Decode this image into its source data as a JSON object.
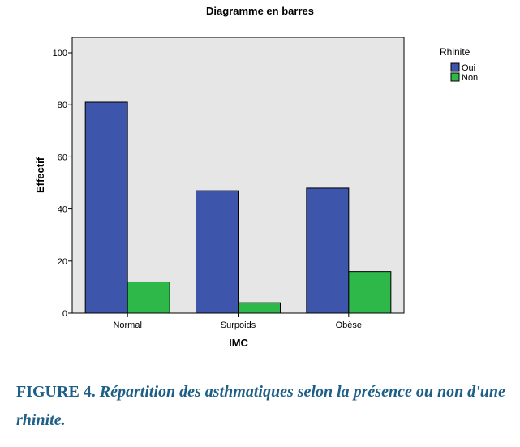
{
  "chart_data": {
    "type": "bar",
    "title": "Diagramme en barres",
    "xlabel": "IMC",
    "ylabel": "Effectif",
    "categories": [
      "Normal",
      "Surpoids",
      "Obèse"
    ],
    "series": [
      {
        "name": "Oui",
        "values": [
          81,
          47,
          48
        ],
        "color": "#3d55aa"
      },
      {
        "name": "Non",
        "values": [
          12,
          4,
          16
        ],
        "color": "#2fb84a"
      }
    ],
    "ylim": [
      0,
      105
    ],
    "yticks": [
      0,
      20,
      40,
      60,
      80,
      100
    ],
    "grid": false,
    "plot_background": "#e6e6e6",
    "legend": {
      "title": "Rhinite",
      "placement": "right"
    }
  },
  "caption": {
    "label": "FIGURE 4.",
    "text": "Répartition des asthmatiques selon la présence ou non d'une rhinite."
  }
}
